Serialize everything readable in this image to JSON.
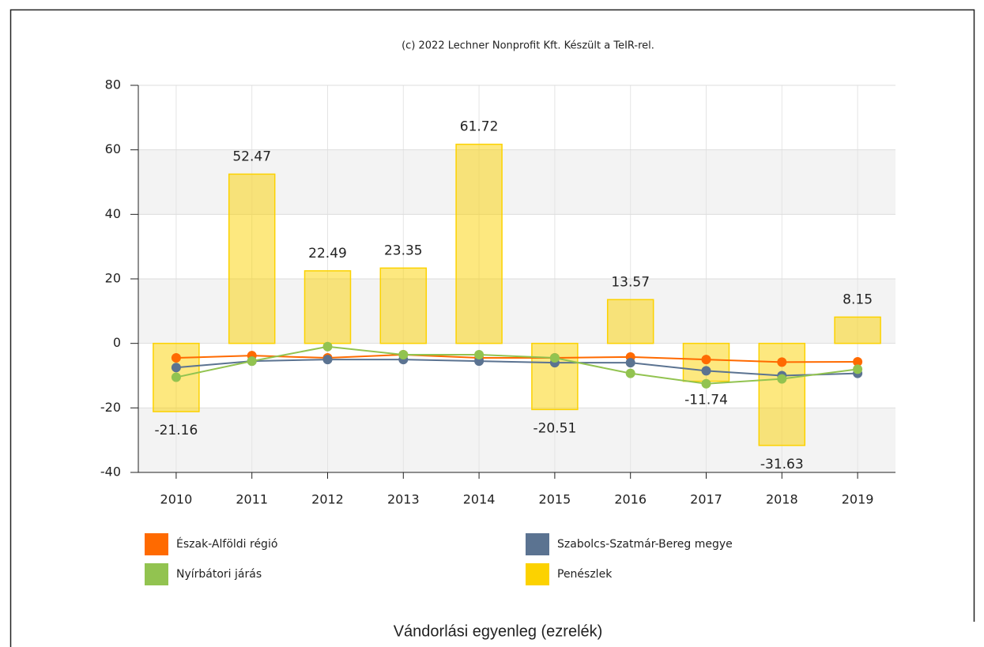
{
  "chart_data": {
    "type": "bar-line",
    "credit": "(c) 2022 Lechner Nonprofit Kft. Készült a TeIR-rel.",
    "title": "Vándorlási egyenleg (ezrelék)",
    "categories": [
      "2010",
      "2011",
      "2012",
      "2013",
      "2014",
      "2015",
      "2016",
      "2017",
      "2018",
      "2019"
    ],
    "ylim": [
      -40,
      80
    ],
    "yticks": [
      -40,
      -20,
      0,
      20,
      40,
      60,
      80
    ],
    "grid": true,
    "series": [
      {
        "name": "Észak-Alföldi régió",
        "type": "line",
        "color": "#ff6a00",
        "values": [
          -4.5,
          -3.8,
          -4.5,
          -3.5,
          -4.5,
          -4.5,
          -4.2,
          -5,
          -5.8,
          -5.7
        ]
      },
      {
        "name": "Szabolcs-Szatmár-Bereg megye",
        "type": "line",
        "color": "#5b7391",
        "values": [
          -7.5,
          -5.5,
          -5,
          -5,
          -5.5,
          -6,
          -6,
          -8.5,
          -10,
          -9.3
        ]
      },
      {
        "name": "Nyírbátori járás",
        "type": "line",
        "color": "#92c350",
        "values": [
          -10.5,
          -5.5,
          -1,
          -3.5,
          -3.5,
          -4.5,
          -9.3,
          -12.5,
          -11,
          -8
        ]
      },
      {
        "name": "Penészlek",
        "type": "bar",
        "color": "#fcd200",
        "values": [
          -21.16,
          52.47,
          22.49,
          23.35,
          61.72,
          -20.51,
          13.57,
          -11.74,
          -31.63,
          8.15
        ]
      }
    ]
  }
}
